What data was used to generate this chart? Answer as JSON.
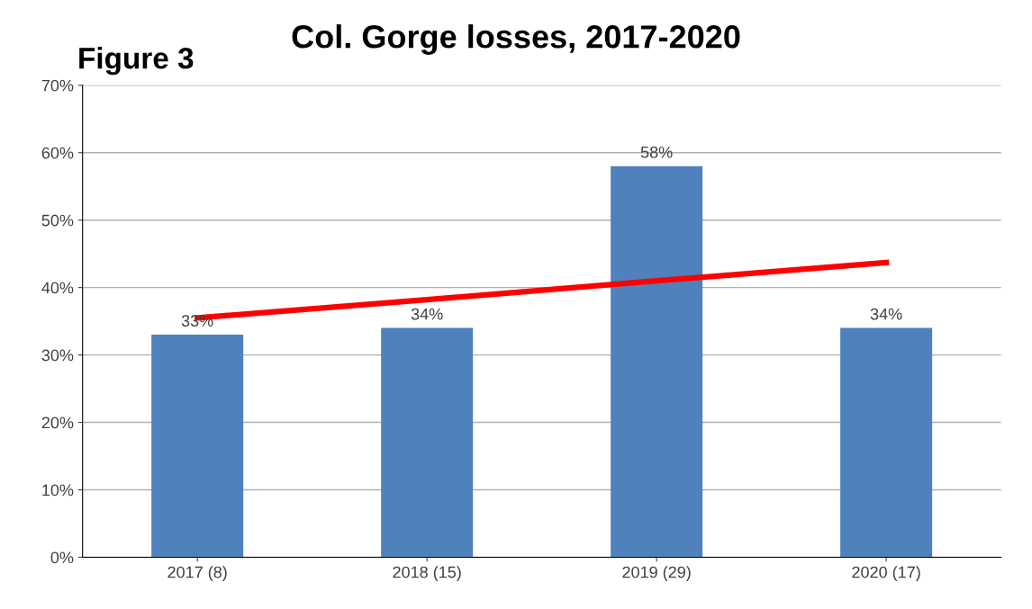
{
  "chart_data": {
    "type": "bar",
    "title": "Col. Gorge losses, 2017-2020",
    "annotations": [
      "Figure 3"
    ],
    "categories": [
      "2017 (8)",
      "2018 (15)",
      "2019 (29)",
      "2020 (17)"
    ],
    "series": [
      {
        "color": "#4f81bd",
        "values": [
          33,
          34,
          58,
          34
        ],
        "value_labels": [
          "33%",
          "34%",
          "58%",
          "34%"
        ]
      },
      {
        "type": "line",
        "color": "#ff0000",
        "values": [
          35.5,
          38.2,
          41.0,
          43.7
        ]
      }
    ],
    "ylim": [
      0,
      70
    ],
    "yticks": [
      {
        "value": 0,
        "label": "0%"
      },
      {
        "value": 10,
        "label": "10%"
      },
      {
        "value": 20,
        "label": "20%"
      },
      {
        "value": 30,
        "label": "30%"
      },
      {
        "value": 40,
        "label": "40%"
      },
      {
        "value": 50,
        "label": "50%"
      },
      {
        "value": 60,
        "label": "60%"
      },
      {
        "value": 70,
        "label": "70%"
      }
    ],
    "grid": "y",
    "legend": false,
    "marker": "none",
    "line_style": "solid"
  }
}
